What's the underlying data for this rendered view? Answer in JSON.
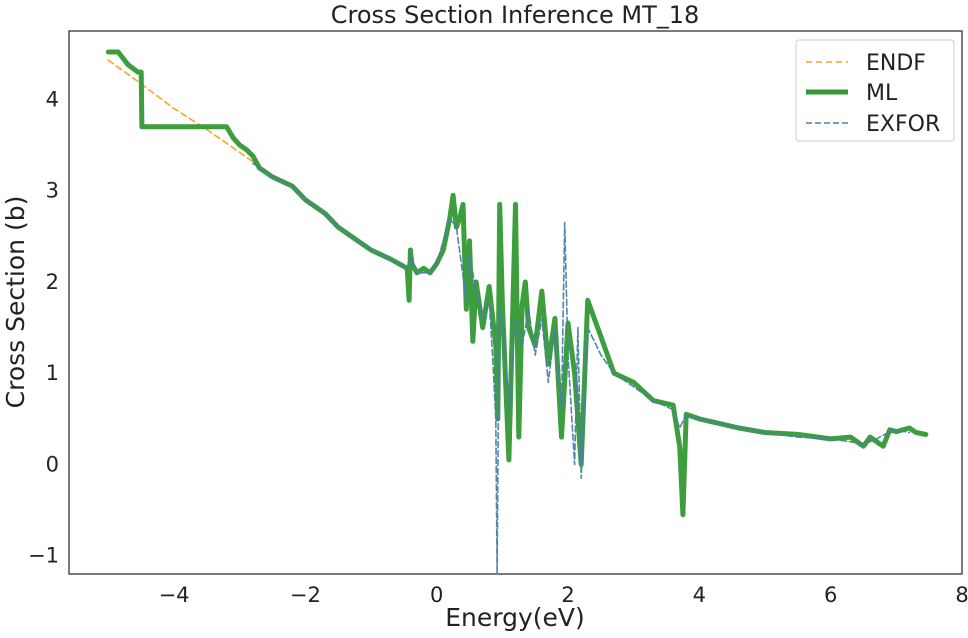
{
  "chart_data": {
    "type": "line",
    "title": "Cross Section Inference MT_18",
    "xlabel": "Energy(eV)",
    "ylabel": "Cross Section (b)",
    "xlim": [
      -5.6,
      8.0
    ],
    "ylim": [
      -1.2,
      4.75
    ],
    "x_ticks": [
      -4,
      -2,
      0,
      2,
      4,
      6,
      8
    ],
    "x_tick_labels": [
      "−4",
      "−2",
      "0",
      "2",
      "4",
      "6",
      "8"
    ],
    "y_ticks": [
      -1,
      0,
      1,
      2,
      3,
      4
    ],
    "y_tick_labels": [
      "−1",
      "0",
      "1",
      "2",
      "3",
      "4"
    ],
    "grid": false,
    "legend_position": "top-right",
    "series": [
      {
        "name": "ENDF",
        "color": "#f5a623",
        "style": "dashed",
        "x": [
          -5.0,
          -4.5,
          -4.0,
          -3.5,
          -3.0,
          -2.7
        ],
        "y": [
          4.43,
          4.17,
          3.9,
          3.67,
          3.42,
          3.27
        ]
      },
      {
        "name": "ML",
        "color": "#339933",
        "style": "solid",
        "x": [
          -5.0,
          -4.85,
          -4.7,
          -4.55,
          -4.5,
          -4.49,
          -4.0,
          -3.5,
          -3.2,
          -3.1,
          -3.0,
          -2.9,
          -2.8,
          -2.7,
          -2.5,
          -2.2,
          -2.0,
          -1.7,
          -1.5,
          -1.2,
          -1.0,
          -0.7,
          -0.45,
          -0.42,
          -0.4,
          -0.38,
          -0.3,
          -0.2,
          -0.1,
          0.0,
          0.1,
          0.2,
          0.25,
          0.3,
          0.35,
          0.4,
          0.45,
          0.5,
          0.55,
          0.6,
          0.7,
          0.8,
          0.9,
          0.93,
          0.96,
          1.0,
          1.1,
          1.2,
          1.25,
          1.3,
          1.35,
          1.4,
          1.5,
          1.6,
          1.7,
          1.8,
          1.9,
          2.0,
          2.1,
          2.2,
          2.3,
          2.5,
          2.7,
          3.0,
          3.3,
          3.6,
          3.7,
          3.75,
          3.8,
          4.0,
          4.3,
          4.6,
          5.0,
          5.5,
          6.0,
          6.3,
          6.5,
          6.6,
          6.7,
          6.8,
          6.9,
          7.0,
          7.2,
          7.3,
          7.45
        ],
        "y": [
          4.52,
          4.52,
          4.38,
          4.3,
          4.3,
          3.7,
          3.7,
          3.7,
          3.7,
          3.58,
          3.5,
          3.45,
          3.38,
          3.25,
          3.15,
          3.05,
          2.9,
          2.75,
          2.6,
          2.45,
          2.35,
          2.25,
          2.15,
          1.8,
          2.35,
          2.2,
          2.1,
          2.15,
          2.1,
          2.2,
          2.35,
          2.7,
          2.95,
          2.6,
          2.7,
          2.85,
          1.7,
          2.45,
          1.35,
          2.0,
          1.5,
          1.95,
          1.3,
          0.5,
          2.85,
          1.75,
          0.05,
          2.85,
          0.3,
          1.75,
          2.0,
          1.5,
          1.3,
          1.9,
          1.1,
          1.6,
          0.3,
          1.55,
          1.0,
          0.0,
          1.8,
          1.4,
          1.0,
          0.9,
          0.7,
          0.65,
          0.2,
          -0.55,
          0.55,
          0.5,
          0.45,
          0.4,
          0.35,
          0.33,
          0.28,
          0.3,
          0.2,
          0.3,
          0.25,
          0.2,
          0.38,
          0.36,
          0.4,
          0.35,
          0.33
        ]
      },
      {
        "name": "EXFOR",
        "color": "#4a7fa8",
        "style": "dashed",
        "x": [
          -2.8,
          -2.5,
          -2.2,
          -2.0,
          -1.7,
          -1.5,
          -1.2,
          -1.0,
          -0.7,
          -0.45,
          -0.4,
          -0.3,
          -0.1,
          0.0,
          0.2,
          0.3,
          0.45,
          0.5,
          0.6,
          0.7,
          0.8,
          0.85,
          0.9,
          0.92,
          0.95,
          1.0,
          1.1,
          1.2,
          1.3,
          1.4,
          1.5,
          1.6,
          1.7,
          1.8,
          1.9,
          1.95,
          2.0,
          2.1,
          2.15,
          2.2,
          2.3,
          2.5,
          2.7,
          3.0,
          3.3,
          3.6,
          3.7,
          3.8,
          4.0,
          4.3,
          4.6,
          5.0,
          5.5,
          6.0,
          6.3,
          6.5,
          6.7,
          6.9,
          7.0,
          7.2
        ],
        "y": [
          3.3,
          3.15,
          3.05,
          2.9,
          2.75,
          2.6,
          2.45,
          2.35,
          2.25,
          2.15,
          2.3,
          2.1,
          2.1,
          2.2,
          2.7,
          2.6,
          1.8,
          2.3,
          1.9,
          1.6,
          1.8,
          1.2,
          0.5,
          -1.2,
          1.7,
          1.6,
          0.6,
          1.6,
          1.3,
          1.7,
          1.2,
          1.6,
          0.9,
          1.5,
          0.6,
          2.65,
          1.2,
          0.0,
          1.5,
          -0.15,
          1.5,
          1.2,
          1.0,
          0.85,
          0.7,
          0.6,
          0.4,
          0.55,
          0.5,
          0.45,
          0.4,
          0.35,
          0.3,
          0.28,
          0.25,
          0.22,
          0.28,
          0.36,
          0.38,
          0.35
        ]
      }
    ]
  }
}
